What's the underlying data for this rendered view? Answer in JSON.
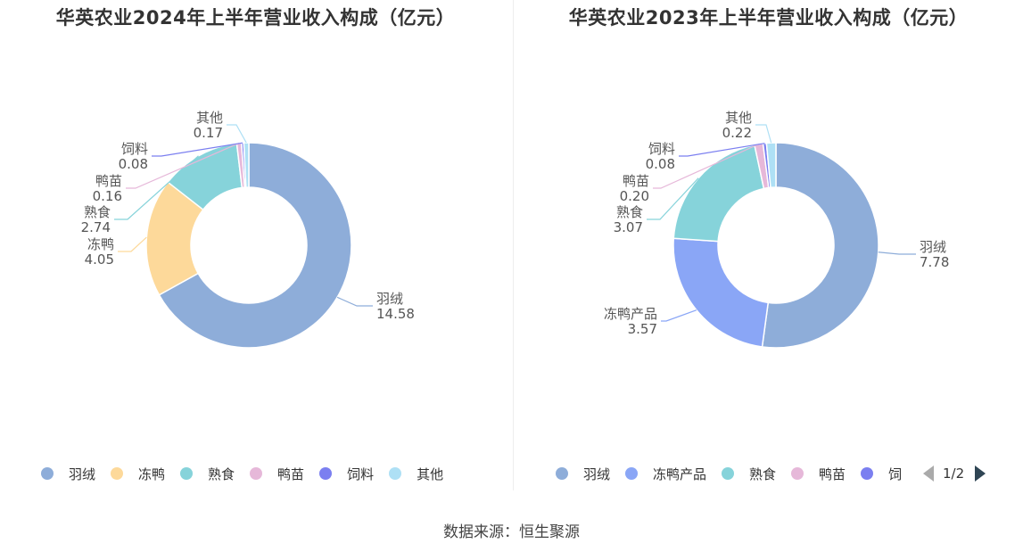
{
  "source": "数据来源：恒生聚源",
  "chart_data": [
    {
      "type": "pie",
      "title": "华英农业2024年上半年营业收入构成（亿元）",
      "series": [
        {
          "name": "羽绒",
          "value": 14.58,
          "label_value": "14.58",
          "color": "#8eadd9"
        },
        {
          "name": "冻鸭",
          "value": 4.05,
          "label_value": "4.05",
          "color": "#fdd99a"
        },
        {
          "name": "熟食",
          "value": 2.74,
          "label_value": "2.74",
          "color": "#86d3da"
        },
        {
          "name": "鸭苗",
          "value": 0.16,
          "label_value": "0.16",
          "color": "#e6b8d9"
        },
        {
          "name": "饲料",
          "value": 0.08,
          "label_value": "0.08",
          "color": "#7b7ff0"
        },
        {
          "name": "其他",
          "value": 0.17,
          "label_value": "0.17",
          "color": "#aee0f5"
        }
      ],
      "legend": {
        "items": [
          "羽绒",
          "冻鸭",
          "熟食",
          "鸭苗",
          "饲料",
          "其他"
        ],
        "position": "bottom"
      }
    },
    {
      "type": "pie",
      "title": "华英农业2023年上半年营业收入构成（亿元）",
      "series": [
        {
          "name": "羽绒",
          "value": 7.78,
          "label_value": "7.78",
          "color": "#8eadd9"
        },
        {
          "name": "冻鸭产品",
          "value": 3.57,
          "label_value": "3.57",
          "color": "#8aa6f6"
        },
        {
          "name": "熟食",
          "value": 3.07,
          "label_value": "3.07",
          "color": "#86d3da"
        },
        {
          "name": "鸭苗",
          "value": 0.2,
          "label_value": "0.20",
          "color": "#e6b8d9"
        },
        {
          "name": "饲料",
          "value": 0.08,
          "label_value": "0.08",
          "color": "#7b7ff0"
        },
        {
          "name": "其他",
          "value": 0.22,
          "label_value": "0.22",
          "color": "#aee0f5"
        }
      ],
      "legend": {
        "items": [
          "羽绒",
          "冻鸭产品",
          "熟食",
          "鸭苗",
          "饲"
        ],
        "position": "bottom",
        "page": "1/2"
      }
    }
  ]
}
